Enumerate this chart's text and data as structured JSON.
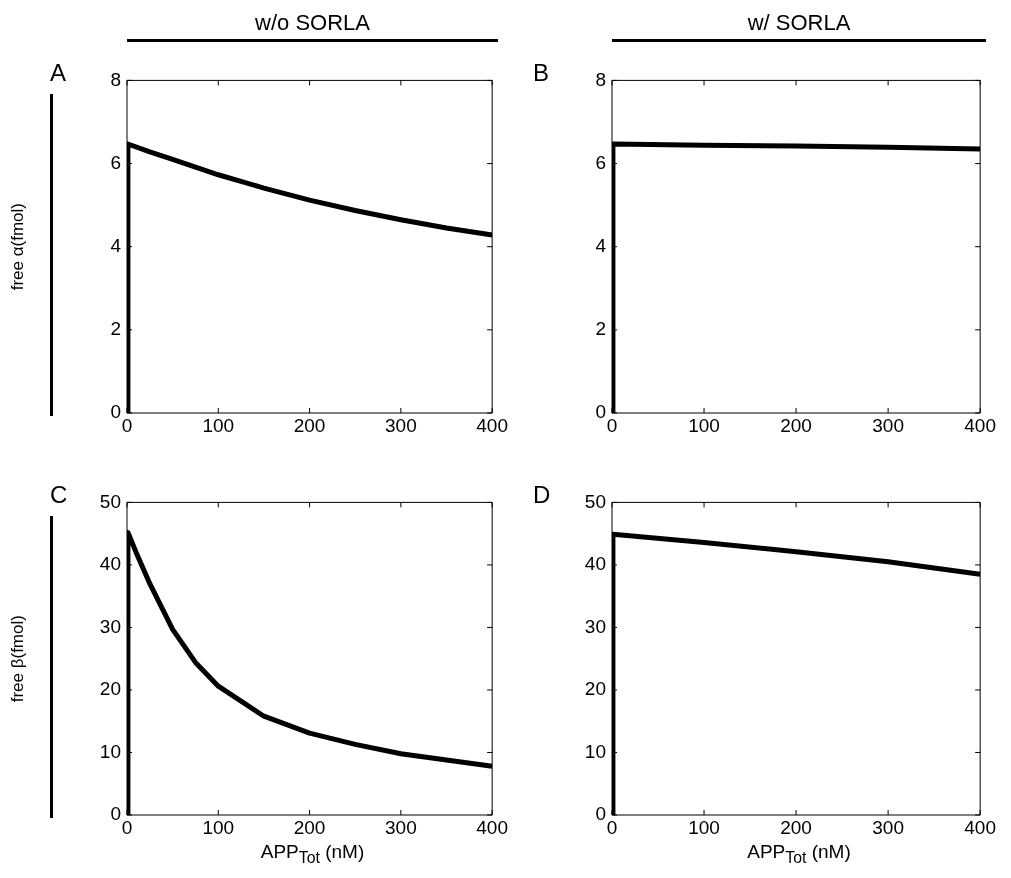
{
  "chart_data": [
    {
      "type": "line",
      "title": "w/o SORLA",
      "ylabel": "free α(fmol)",
      "annotations": [
        "A"
      ],
      "x": [
        0,
        1,
        25,
        50,
        100,
        150,
        200,
        250,
        300,
        350,
        400
      ],
      "xlim": [
        0,
        400
      ],
      "xticks": [
        0,
        100,
        200,
        300,
        400
      ],
      "ylim": [
        0,
        8
      ],
      "yticks": [
        0,
        2,
        4,
        6,
        8
      ],
      "series": [
        {
          "color": "#000000",
          "values": [
            0,
            6.47,
            6.28,
            6.1,
            5.73,
            5.41,
            5.12,
            4.87,
            4.65,
            4.45,
            4.28
          ]
        }
      ]
    },
    {
      "type": "line",
      "title": "w/ SORLA",
      "annotations": [
        "B"
      ],
      "x": [
        0,
        1,
        100,
        200,
        300,
        400
      ],
      "xlim": [
        0,
        400
      ],
      "xticks": [
        0,
        100,
        200,
        300,
        400
      ],
      "ylim": [
        0,
        8
      ],
      "yticks": [
        0,
        2,
        4,
        6,
        8
      ],
      "series": [
        {
          "color": "#000000",
          "values": [
            0,
            6.47,
            6.44,
            6.42,
            6.39,
            6.35
          ]
        }
      ]
    },
    {
      "type": "line",
      "ylabel": "free β(fmol)",
      "xlabel": "APP$_{Tot}$ (nM)",
      "annotations": [
        "C"
      ],
      "x": [
        0,
        1,
        10,
        25,
        50,
        75,
        100,
        150,
        200,
        250,
        300,
        350,
        400
      ],
      "xlim": [
        0,
        400
      ],
      "xticks": [
        0,
        100,
        200,
        300,
        400
      ],
      "ylim": [
        0,
        50
      ],
      "yticks": [
        0,
        10,
        20,
        30,
        40,
        50
      ],
      "series": [
        {
          "color": "#000000",
          "values": [
            0,
            45.2,
            42,
            37,
            29.7,
            24.4,
            20.6,
            15.8,
            13.1,
            11.3,
            9.8,
            8.8,
            7.8
          ]
        }
      ]
    },
    {
      "type": "line",
      "xlabel": "APP$_{Tot}$ (nM)",
      "annotations": [
        "D"
      ],
      "x": [
        0,
        1,
        100,
        200,
        300,
        400
      ],
      "xlim": [
        0,
        400
      ],
      "xticks": [
        0,
        100,
        200,
        300,
        400
      ],
      "ylim": [
        0,
        50
      ],
      "yticks": [
        0,
        10,
        20,
        30,
        40,
        50
      ],
      "series": [
        {
          "color": "#000000",
          "values": [
            0,
            44.9,
            43.6,
            42.1,
            40.5,
            38.5
          ]
        }
      ]
    }
  ]
}
